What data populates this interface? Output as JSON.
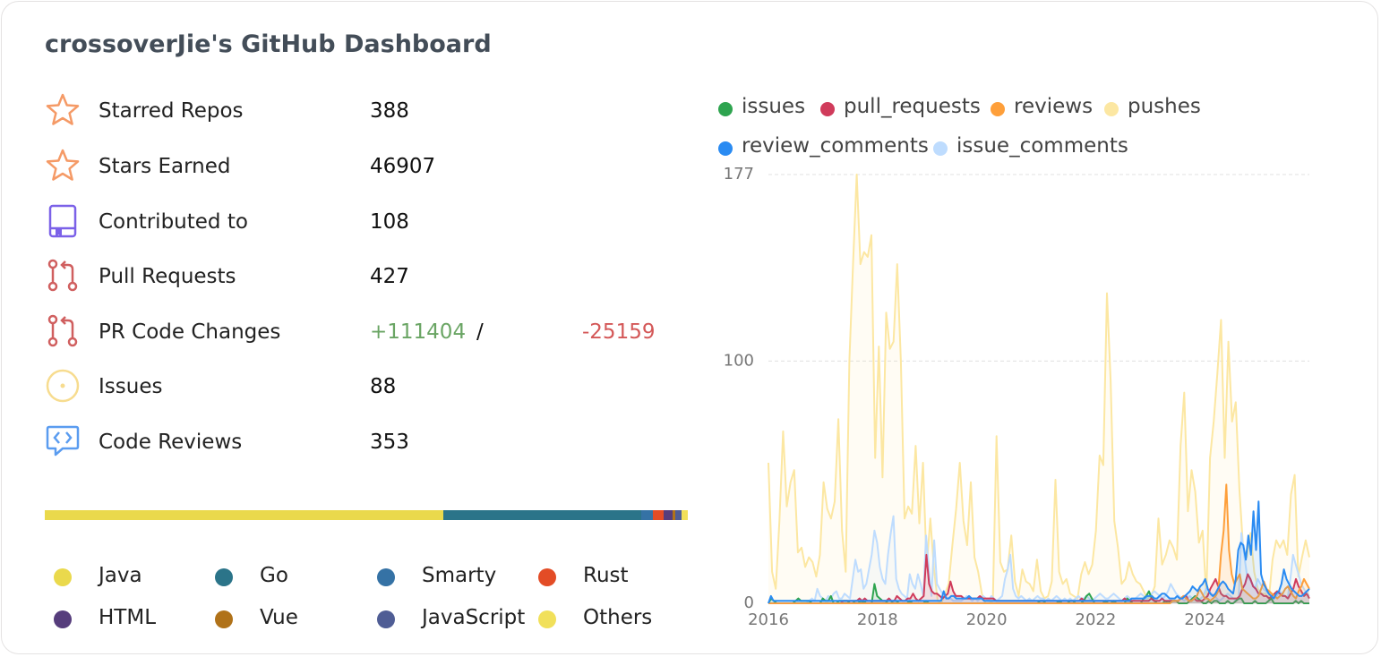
{
  "title": "crossoverJie's GitHub Dashboard",
  "stats": {
    "starred_repos": {
      "label": "Starred Repos",
      "value": "388"
    },
    "stars_earned": {
      "label": "Stars Earned",
      "value": "46907"
    },
    "contributed_to": {
      "label": "Contributed to",
      "value": "108"
    },
    "pull_requests": {
      "label": "Pull Requests",
      "value": "427"
    },
    "pr_code_changes": {
      "label": "PR Code Changes",
      "additions": "+111404",
      "separator": "/",
      "deletions": "-25159"
    },
    "issues": {
      "label": "Issues",
      "value": "88"
    },
    "code_reviews": {
      "label": "Code Reviews",
      "value": "353"
    }
  },
  "icons": {
    "starred_repos": "star-icon",
    "stars_earned": "star-icon",
    "contributed_to": "repo-icon",
    "pull_requests": "pull-request-icon",
    "pr_code_changes": "pull-request-icon",
    "issues": "issue-icon",
    "code_reviews": "code-review-icon"
  },
  "languages": [
    {
      "name": "Java",
      "color": "#ead94c",
      "share": 0.62
    },
    {
      "name": "Go",
      "color": "#2b7489",
      "share": 0.308
    },
    {
      "name": "Smarty",
      "color": "#3572a5",
      "share": 0.018
    },
    {
      "name": "Rust",
      "color": "#e34c26",
      "share": 0.016
    },
    {
      "name": "HTML",
      "color": "#563d7c",
      "share": 0.014
    },
    {
      "name": "Vue",
      "color": "#b07219",
      "share": 0.004
    },
    {
      "name": "JavaScript",
      "color": "#4f5d95",
      "share": 0.01
    },
    {
      "name": "Others",
      "color": "#f1e05a",
      "share": 0.01
    }
  ],
  "chart_data": {
    "type": "line",
    "x_start": "2016-01",
    "x_end": "2025-12",
    "x_ticks": [
      "2016",
      "2018",
      "2020",
      "2022",
      "2024"
    ],
    "y_ticks": [
      "0",
      "100",
      "177"
    ],
    "ylim": [
      0,
      177
    ],
    "grid": "horizontal dashed",
    "legend_position": "top",
    "series": [
      {
        "name": "issues",
        "color": "#2ea44f",
        "values": [
          0,
          2,
          1,
          0,
          0,
          0,
          0,
          0,
          0,
          0,
          1,
          2,
          1,
          1,
          1,
          1,
          0,
          0,
          0,
          0,
          2,
          1,
          1,
          3,
          0,
          0,
          1,
          1,
          1,
          1,
          0,
          0,
          1,
          1,
          0,
          1,
          0,
          0,
          0,
          8,
          3,
          2,
          1,
          1,
          0,
          0,
          1,
          1,
          0,
          0,
          0,
          0,
          1,
          0,
          0,
          0,
          0,
          0,
          1,
          0,
          0,
          0,
          0,
          0,
          0,
          0,
          0,
          0,
          0,
          0,
          0,
          0,
          0,
          0,
          0,
          0,
          0,
          0,
          0,
          0,
          0,
          0,
          0,
          0,
          0,
          0,
          0,
          0,
          0,
          0,
          0,
          0,
          0,
          0,
          0,
          0,
          0,
          0,
          0,
          0,
          1,
          1,
          0,
          0,
          0,
          0,
          0,
          1,
          0,
          0,
          0,
          1,
          1,
          0,
          0,
          0,
          1,
          3,
          4,
          2,
          0,
          0,
          0,
          0,
          1,
          0,
          0,
          1,
          0,
          0,
          0,
          0,
          2,
          1,
          0,
          0,
          0,
          0,
          2,
          3,
          5,
          2,
          1,
          0,
          0,
          0,
          1,
          0,
          1,
          1,
          1,
          0,
          0,
          0,
          0,
          1,
          2,
          3,
          2,
          1,
          0,
          0,
          1,
          0,
          1,
          1,
          0,
          0,
          0,
          1,
          0,
          0,
          1,
          2,
          2,
          0,
          0,
          0,
          0,
          1,
          0,
          0,
          0,
          0,
          1,
          2,
          0,
          0,
          0,
          0,
          0,
          0,
          0,
          0,
          1,
          0,
          1,
          0,
          0,
          0
        ]
      },
      {
        "name": "pull_requests",
        "color": "#d03b5b",
        "values": [
          0,
          0,
          0,
          0,
          0,
          0,
          0,
          0,
          0,
          0,
          0,
          0,
          0,
          0,
          0,
          0,
          0,
          0,
          0,
          0,
          0,
          0,
          0,
          0,
          0,
          0,
          0,
          0,
          1,
          1,
          1,
          1,
          1,
          1,
          2,
          1,
          2,
          1,
          1,
          1,
          1,
          1,
          1,
          1,
          1,
          2,
          1,
          1,
          3,
          2,
          1,
          1,
          2,
          2,
          4,
          2,
          1,
          2,
          3,
          20,
          8,
          5,
          4,
          4,
          3,
          2,
          3,
          4,
          9,
          5,
          3,
          3,
          3,
          2,
          2,
          2,
          2,
          2,
          2,
          3,
          2,
          2,
          2,
          2,
          2,
          1,
          1,
          1,
          1,
          1,
          1,
          1,
          1,
          1,
          1,
          1,
          1,
          1,
          1,
          1,
          1,
          1,
          1,
          1,
          1,
          1,
          1,
          1,
          1,
          1,
          1,
          1,
          1,
          1,
          1,
          1,
          1,
          2,
          1,
          1,
          1,
          1,
          1,
          1,
          1,
          1,
          1,
          1,
          1,
          1,
          1,
          1,
          1,
          2,
          1,
          1,
          1,
          1,
          1,
          1,
          1,
          1,
          1,
          2,
          1,
          1,
          1,
          2,
          1,
          1,
          1,
          1,
          1,
          1,
          2,
          3,
          3,
          1,
          1,
          2,
          1,
          1,
          1,
          2,
          3,
          6,
          8,
          10,
          7,
          4,
          3,
          3,
          2,
          2,
          2,
          2,
          3,
          6,
          8,
          12,
          10,
          7,
          6,
          4,
          4,
          3,
          3,
          2,
          3,
          4,
          5,
          4,
          3,
          3,
          2,
          4,
          6,
          10,
          7,
          5,
          3,
          4,
          2
        ]
      },
      {
        "name": "reviews",
        "color": "#fe9f3a",
        "values": [
          0,
          0,
          0,
          0,
          0,
          0,
          0,
          0,
          0,
          0,
          0,
          0,
          0,
          0,
          0,
          0,
          0,
          0,
          0,
          0,
          0,
          0,
          0,
          0,
          0,
          0,
          0,
          0,
          0,
          0,
          0,
          0,
          0,
          0,
          0,
          0,
          0,
          0,
          0,
          0,
          0,
          0,
          0,
          0,
          0,
          0,
          0,
          0,
          0,
          0,
          0,
          0,
          0,
          0,
          0,
          0,
          0,
          0,
          0,
          0,
          0,
          0,
          0,
          0,
          0,
          0,
          0,
          0,
          0,
          0,
          0,
          0,
          0,
          0,
          0,
          0,
          0,
          0,
          0,
          0,
          0,
          0,
          0,
          0,
          0,
          0,
          0,
          0,
          0,
          0,
          0,
          0,
          0,
          0,
          0,
          0,
          0,
          0,
          0,
          0,
          0,
          0,
          0,
          0,
          0,
          0,
          0,
          0,
          0,
          0,
          0,
          0,
          0,
          0,
          0,
          0,
          0,
          0,
          0,
          0,
          0,
          0,
          0,
          0,
          0,
          0,
          0,
          0,
          0,
          0,
          0,
          0,
          0,
          0,
          0,
          0,
          0,
          0,
          0,
          0,
          0,
          0,
          0,
          0,
          0,
          0,
          0,
          0,
          0,
          0,
          0,
          1,
          1,
          1,
          2,
          3,
          2,
          1,
          1,
          2,
          3,
          6,
          4,
          2,
          2,
          1,
          2,
          3,
          5,
          20,
          30,
          49,
          22,
          12,
          8,
          10,
          12,
          6,
          5,
          4,
          3,
          2,
          2,
          3,
          6,
          9,
          6,
          5,
          4,
          3,
          2,
          3,
          4,
          6,
          7,
          5,
          3,
          2,
          5,
          7,
          10,
          8,
          6
        ]
      },
      {
        "name": "pushes",
        "color": "#fce7a2",
        "values": [
          58,
          13,
          6,
          34,
          71,
          40,
          50,
          55,
          21,
          23,
          15,
          19,
          17,
          11,
          20,
          50,
          39,
          35,
          42,
          76,
          30,
          13,
          100,
          140,
          177,
          140,
          145,
          143,
          152,
          60,
          106,
          52,
          120,
          105,
          108,
          140,
          100,
          35,
          40,
          37,
          65,
          33,
          58,
          15,
          35,
          14,
          1,
          0,
          4,
          8,
          24,
          39,
          58,
          34,
          24,
          50,
          19,
          13,
          4,
          0,
          0,
          1,
          69,
          17,
          13,
          14,
          28,
          9,
          3,
          14,
          9,
          8,
          5,
          18,
          5,
          2,
          3,
          9,
          51,
          13,
          8,
          10,
          4,
          3,
          2,
          12,
          17,
          12,
          16,
          30,
          61,
          57,
          128,
          92,
          34,
          23,
          8,
          10,
          17,
          12,
          9,
          8,
          5,
          2,
          3,
          7,
          35,
          16,
          20,
          26,
          23,
          18,
          65,
          87,
          38,
          55,
          46,
          25,
          30,
          3,
          60,
          75,
          95,
          117,
          60,
          108,
          75,
          83,
          47,
          23,
          19,
          29,
          13,
          6,
          4,
          4,
          2,
          18,
          26,
          23,
          26,
          20,
          45,
          53,
          11,
          19,
          26,
          19
        ]
      },
      {
        "name": "review_comments",
        "color": "#2a8bf2",
        "values": [
          0,
          3,
          1,
          1,
          1,
          1,
          1,
          1,
          1,
          1,
          1,
          1,
          1,
          1,
          1,
          1,
          1,
          1,
          1,
          1,
          1,
          1,
          1,
          1,
          1,
          1,
          1,
          1,
          1,
          1,
          1,
          1,
          1,
          1,
          1,
          1,
          1,
          1,
          1,
          1,
          1,
          1,
          1,
          1,
          1,
          1,
          1,
          1,
          1,
          1,
          1,
          1,
          1,
          1,
          1,
          1,
          1,
          1,
          1,
          1,
          1,
          1,
          1,
          1,
          1,
          1,
          1,
          1,
          1,
          5,
          2,
          2,
          3,
          3,
          2,
          2,
          2,
          2,
          2,
          3,
          2,
          2,
          2,
          2,
          2,
          1,
          1,
          1,
          1,
          1,
          1,
          1,
          1,
          1,
          1,
          1,
          1,
          1,
          1,
          1,
          1,
          1,
          1,
          1,
          1,
          1,
          1,
          1,
          1,
          1,
          1,
          1,
          1,
          1,
          1,
          1,
          1,
          1,
          1,
          1,
          1,
          1,
          1,
          1,
          1,
          1,
          1,
          1,
          1,
          1,
          1,
          1,
          1,
          1,
          1,
          1,
          1,
          1,
          1,
          1,
          1,
          1,
          1,
          2,
          2,
          2,
          2,
          2,
          2,
          3,
          3,
          3,
          2,
          2,
          3,
          4,
          4,
          3,
          2,
          2,
          2,
          3,
          2,
          2,
          3,
          4,
          5,
          7,
          6,
          5,
          7,
          8,
          10,
          6,
          4,
          3,
          4,
          6,
          8,
          9,
          8,
          6,
          5,
          4,
          10,
          22,
          25,
          24,
          18,
          28,
          20,
          38,
          22,
          42,
          12,
          8,
          6,
          4,
          3,
          2,
          4,
          5,
          8,
          14,
          10,
          8,
          6,
          5,
          4,
          3,
          3,
          4,
          5,
          6
        ]
      },
      {
        "name": "issue_comments",
        "color": "#bedcfe",
        "values": [
          0,
          0,
          0,
          0,
          0,
          0,
          0,
          0,
          0,
          0,
          0,
          0,
          0,
          0,
          0,
          1,
          2,
          1,
          6,
          3,
          2,
          1,
          3,
          2,
          4,
          5,
          2,
          2,
          4,
          3,
          2,
          10,
          18,
          13,
          14,
          6,
          8,
          14,
          20,
          30,
          25,
          15,
          10,
          8,
          20,
          29,
          36,
          10,
          6,
          4,
          3,
          2,
          12,
          8,
          6,
          12,
          8,
          3,
          28,
          15,
          3,
          26,
          8,
          6,
          4,
          3,
          2,
          2,
          1,
          1,
          1,
          1,
          2,
          3,
          2,
          1,
          2,
          1,
          2,
          3,
          2,
          1,
          3,
          2,
          1,
          2,
          3,
          10,
          14,
          20,
          6,
          3,
          2,
          3,
          2,
          1,
          2,
          1,
          2,
          3,
          2,
          2,
          1,
          2,
          1,
          2,
          3,
          2,
          1,
          2,
          1,
          2,
          1,
          2,
          3,
          2,
          2,
          3,
          2,
          1,
          2,
          3,
          4,
          3,
          2,
          2,
          3,
          4,
          3,
          2,
          1,
          2,
          3,
          2,
          1,
          2,
          3,
          4,
          3,
          2,
          3,
          4,
          5,
          4,
          3,
          2,
          3,
          5,
          8,
          6,
          4,
          3,
          2,
          1,
          2,
          3,
          2,
          2,
          1,
          2,
          3,
          6,
          5,
          4,
          3,
          2,
          1,
          2,
          3,
          4,
          3,
          2,
          1,
          2,
          29,
          20,
          12,
          10,
          8,
          6,
          10,
          8,
          6,
          5,
          4,
          3,
          2,
          3,
          5,
          4,
          3,
          2,
          10,
          20,
          16,
          12,
          8,
          6,
          4,
          3
        ]
      }
    ]
  }
}
